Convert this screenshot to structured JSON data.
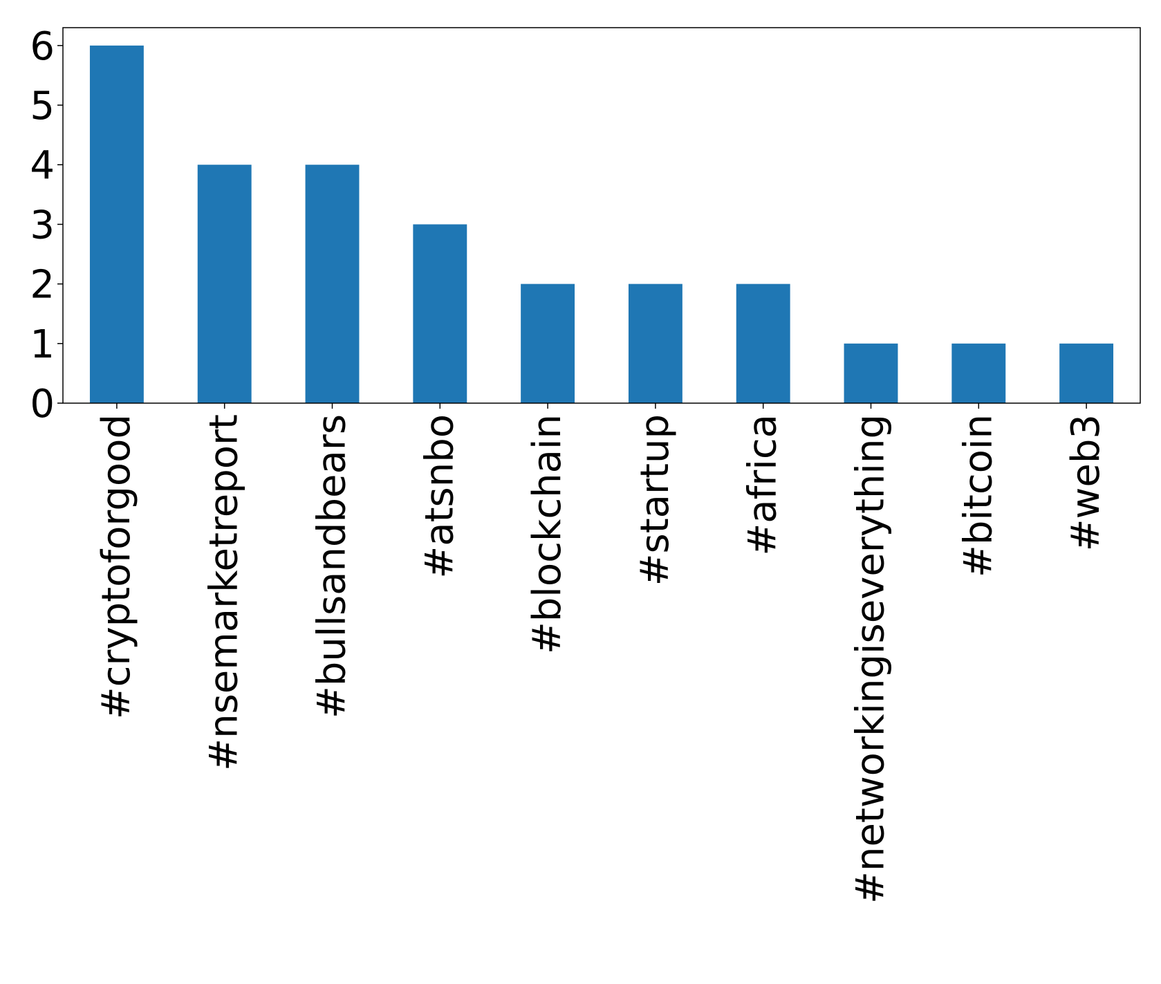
{
  "chart_data": {
    "type": "bar",
    "categories": [
      "#cryptoforgood",
      "#nsemarketreport",
      "#bullsandbears",
      "#atsnbo",
      "#blockchain",
      "#startup",
      "#africa",
      "#networkingiseverything",
      "#bitcoin",
      "#web3"
    ],
    "values": [
      6,
      4,
      4,
      3,
      2,
      2,
      2,
      1,
      1,
      1
    ],
    "title": "",
    "xlabel": "",
    "ylabel": "",
    "ylim": [
      0,
      6.3
    ],
    "yticks": [
      0,
      1,
      2,
      3,
      4,
      5,
      6
    ],
    "grid": false,
    "legend": "none",
    "bar_color": "#1f77b4"
  }
}
